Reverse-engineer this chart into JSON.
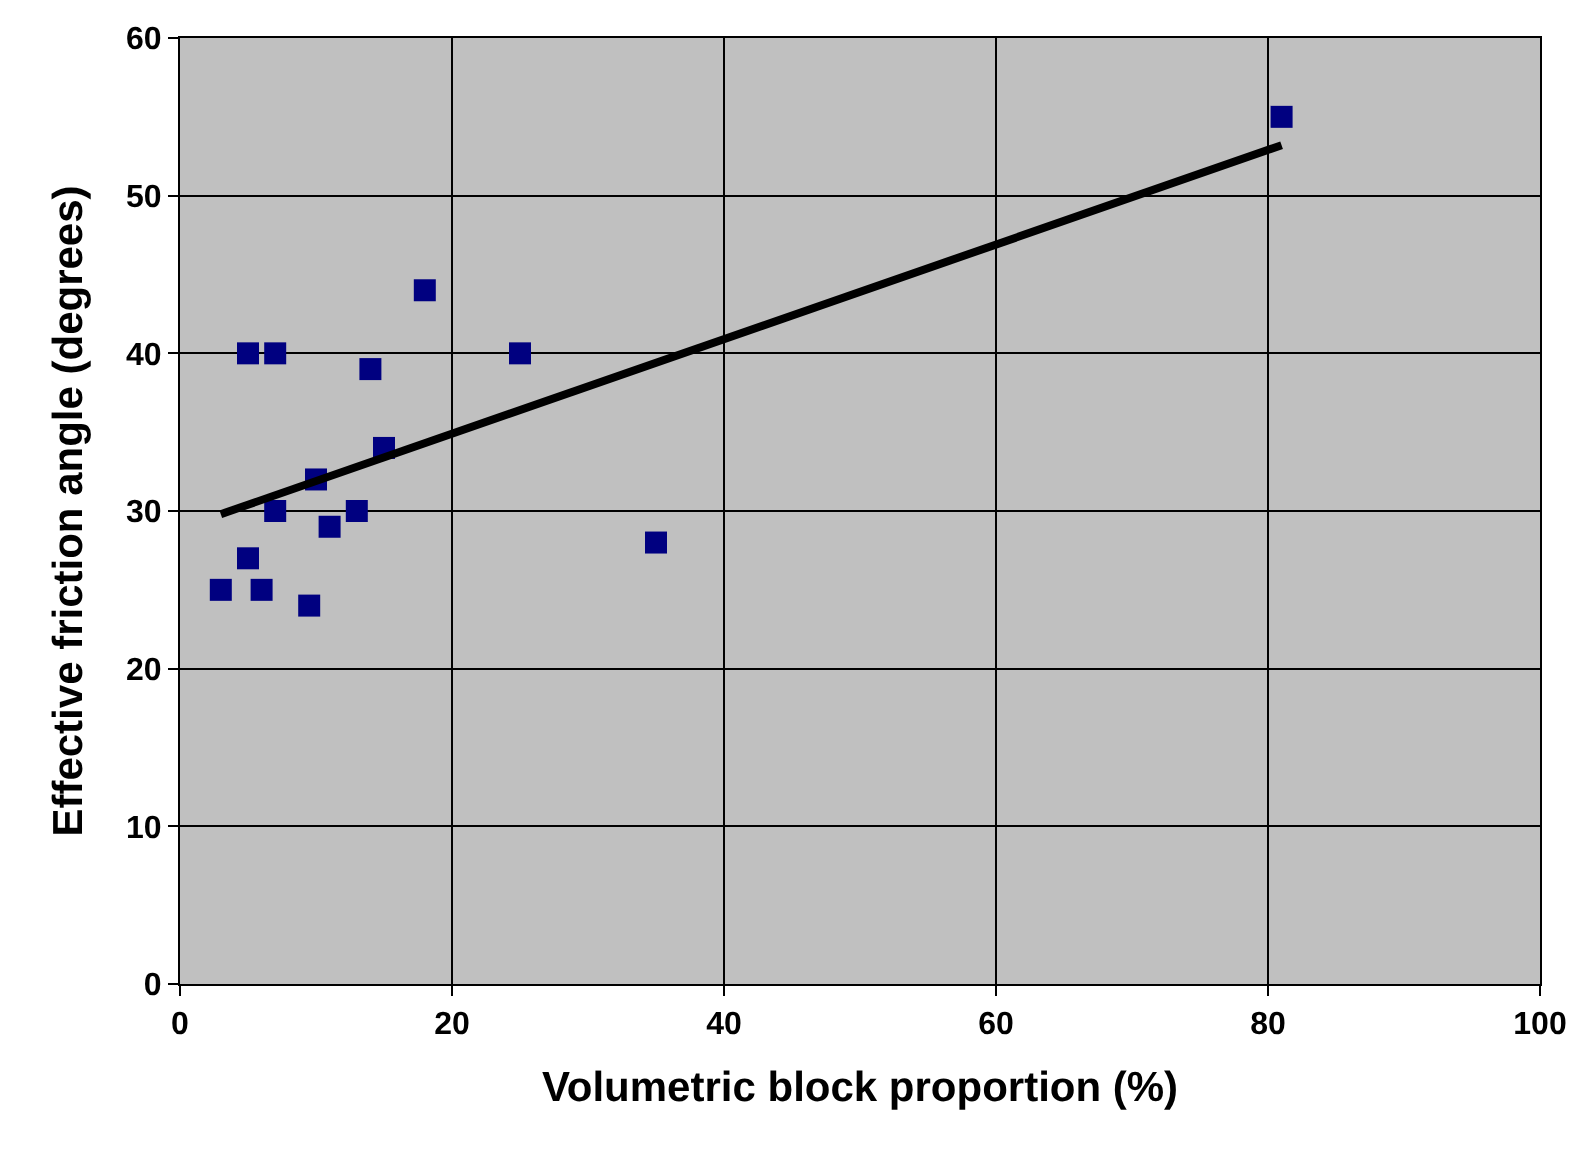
{
  "chart_data": {
    "type": "scatter",
    "xlabel": "Volumetric block proportion (%)",
    "ylabel": "Effective friction angle (degrees)",
    "xlim": [
      0,
      100
    ],
    "xticks": [
      0,
      20,
      40,
      60,
      80,
      100
    ],
    "ylim": [
      0,
      60
    ],
    "yticks": [
      0,
      10,
      20,
      30,
      40,
      50,
      60
    ],
    "grid": true,
    "legend": false,
    "series": [
      {
        "color": "#000080",
        "marker": "square",
        "x": [
          3,
          5,
          5,
          6,
          7,
          7,
          9.5,
          10,
          11,
          13,
          14,
          15,
          18,
          25,
          35,
          81
        ],
        "values": [
          25,
          40,
          27,
          25,
          40,
          30,
          24,
          32,
          29,
          30,
          39,
          34,
          44,
          40,
          28,
          55
        ]
      },
      {
        "type": "line",
        "color": "#000000",
        "marker": "none",
        "line_style": "solid",
        "x": [
          3,
          81
        ],
        "values": [
          29.8,
          53.2
        ]
      }
    ]
  }
}
